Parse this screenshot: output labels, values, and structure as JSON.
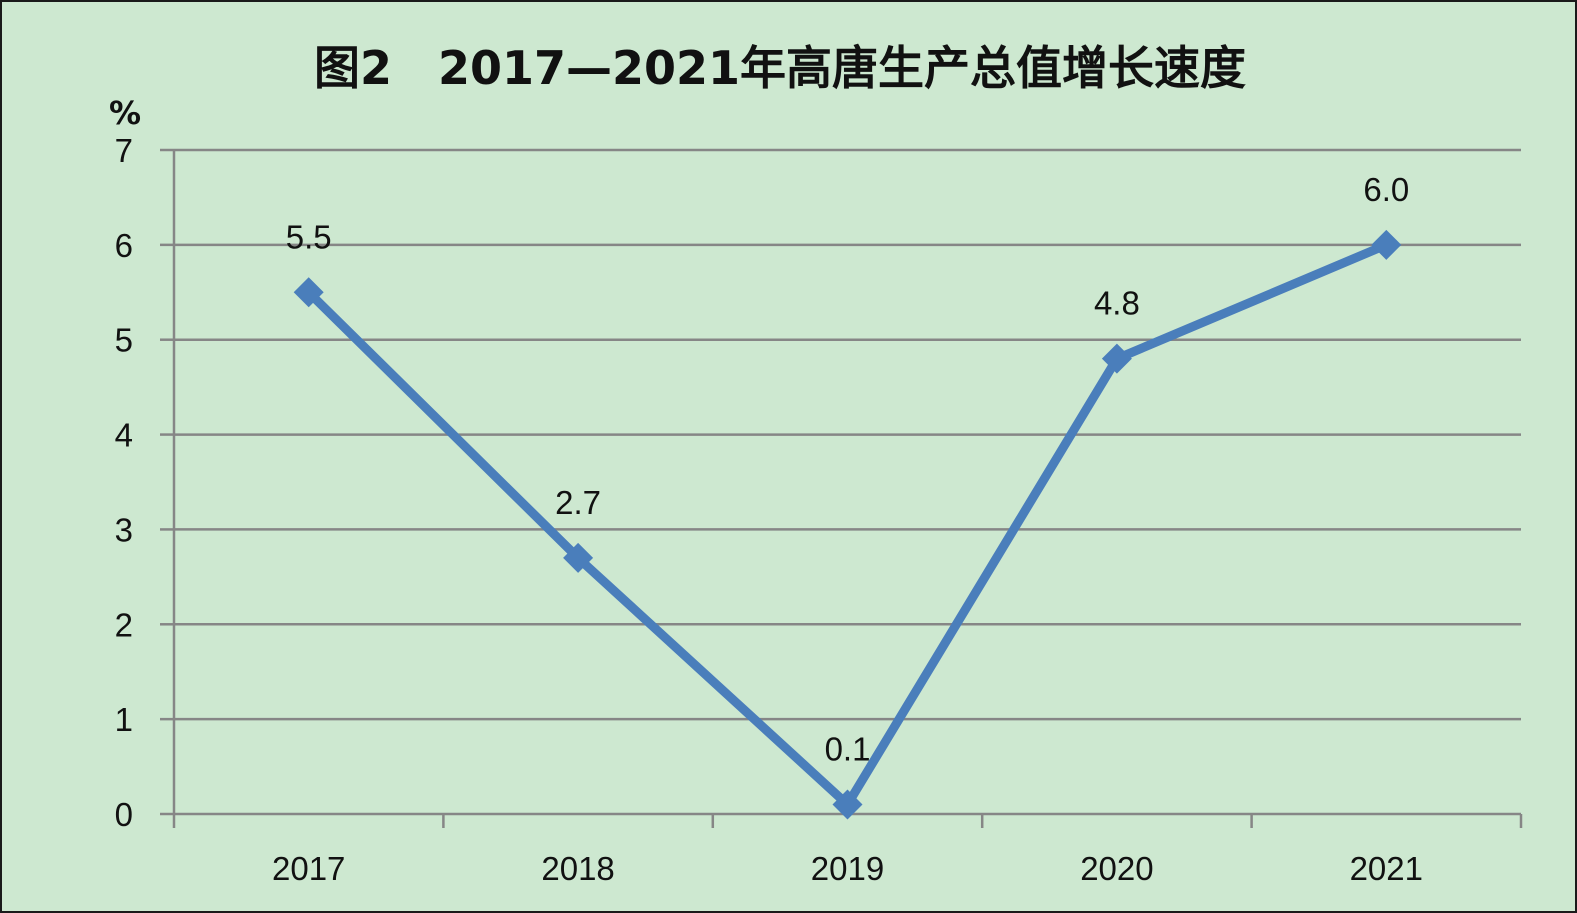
{
  "chart_data": {
    "type": "line",
    "title": "图2　2017—2021年高唐生产总值增长速度",
    "ylabel": "%",
    "xlabel": "",
    "categories": [
      "2017",
      "2018",
      "2019",
      "2020",
      "2021"
    ],
    "series": [
      {
        "values": [
          5.5,
          2.7,
          0.1,
          4.8,
          6.0
        ],
        "labels": [
          "5.5",
          "2.7",
          "0.1",
          "4.8",
          "6.0"
        ],
        "color": "#4a7ebb",
        "marker": "diamond"
      }
    ],
    "ylim": [
      0,
      7
    ],
    "yticks": [
      "0",
      "1",
      "2",
      "3",
      "4",
      "5",
      "6",
      "7"
    ],
    "grid": true,
    "legend": "none"
  },
  "colors": {
    "background": "#cde8d0",
    "gridline": "#868686",
    "axis": "#868686",
    "text": "#111111"
  }
}
